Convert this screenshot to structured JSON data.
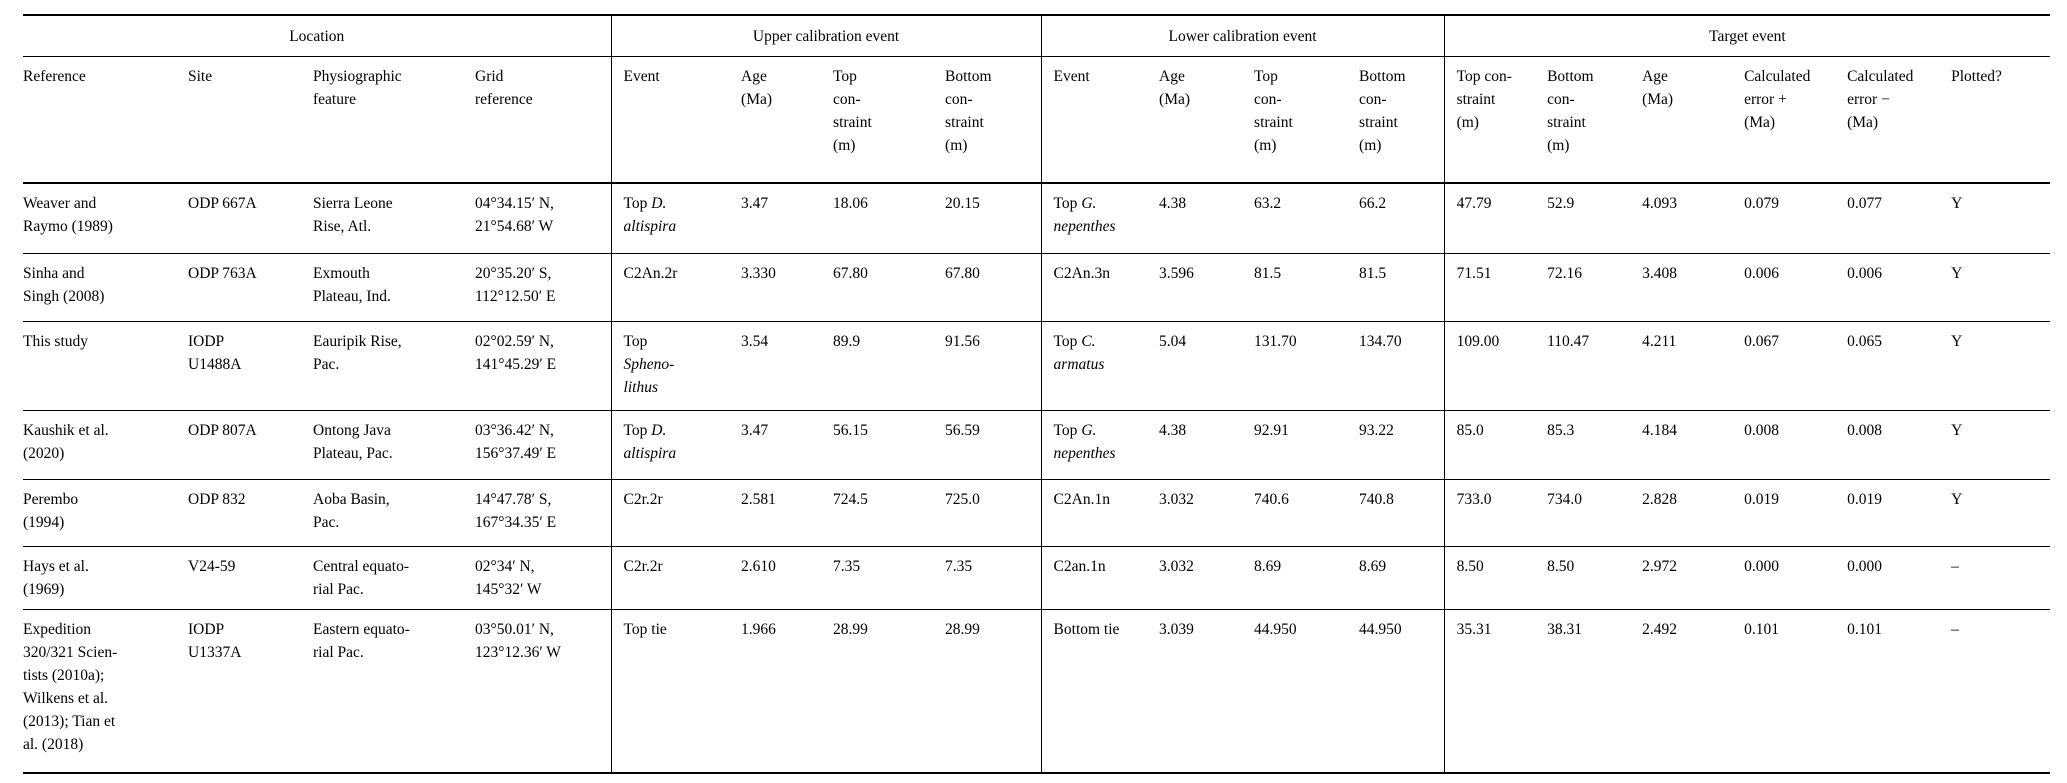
{
  "page": {
    "background": "#ffffff",
    "text_color": "#000000",
    "rule_color": "#000000"
  },
  "table": {
    "groups": [
      {
        "label": "Location",
        "span": 4
      },
      {
        "label": "Upper calibration event",
        "span": 4
      },
      {
        "label": "Lower calibration event",
        "span": 4
      },
      {
        "label": "Target event",
        "span": 6
      }
    ],
    "columns": [
      "Reference",
      "Site",
      "Physiographic\nfeature",
      "Grid\nreference",
      "Event",
      "Age\n(Ma)",
      "Top\ncon-\nstraint\n(m)",
      "Bottom\ncon-\nstraint\n(m)",
      "Event",
      "Age\n(Ma)",
      "Top\ncon-\nstraint\n(m)",
      "Bottom\ncon-\nstraint\n(m)",
      "Top con-\nstraint\n(m)",
      "Bottom\ncon-\nstraint\n(m)",
      "Age\n(Ma)",
      "Calculated\nerror +\n(Ma)",
      "Calculated\nerror −\n(Ma)",
      "Plotted?"
    ],
    "rows": [
      [
        "Weaver and\nRaymo (1989)",
        "ODP 667A",
        "Sierra Leone\nRise, Atl.",
        "04°34.15′ N,\n21°54.68′ W",
        "Top *D.\naltispira*",
        "3.47",
        "18.06",
        "20.15",
        "Top *G.\nnepenthes*",
        "4.38",
        "63.2",
        "66.2",
        "47.79",
        "52.9",
        "4.093",
        "0.079",
        "0.077",
        "Y"
      ],
      [
        "Sinha and\nSingh (2008)",
        "ODP 763A",
        "Exmouth\nPlateau, Ind.",
        "20°35.20′ S,\n112°12.50′ E",
        "C2An.2r",
        "3.330",
        "67.80",
        "67.80",
        "C2An.3n",
        "3.596",
        "81.5",
        "81.5",
        "71.51",
        "72.16",
        "3.408",
        "0.006",
        "0.006",
        "Y"
      ],
      [
        "This study",
        "IODP\nU1488A",
        "Eauripik Rise,\nPac.",
        "02°02.59′ N,\n141°45.29′ E",
        "Top\n*Spheno-\nlithus*",
        "3.54",
        "89.9",
        "91.56",
        "Top *C.\narmatus*",
        "5.04",
        "131.70",
        "134.70",
        "109.00",
        "110.47",
        "4.211",
        "0.067",
        "0.065",
        "Y"
      ],
      [
        "Kaushik et al.\n(2020)",
        "ODP 807A",
        "Ontong Java\nPlateau, Pac.",
        "03°36.42′ N,\n156°37.49′ E",
        "Top *D.\naltispira*",
        "3.47",
        "56.15",
        "56.59",
        "Top *G.\nnepenthes*",
        "4.38",
        "92.91",
        "93.22",
        "85.0",
        "85.3",
        "4.184",
        "0.008",
        "0.008",
        "Y"
      ],
      [
        "Perembo\n(1994)",
        "ODP 832",
        "Aoba Basin,\nPac.",
        "14°47.78′ S,\n167°34.35′ E",
        "C2r.2r",
        "2.581",
        "724.5",
        "725.0",
        "C2An.1n",
        "3.032",
        "740.6",
        "740.8",
        "733.0",
        "734.0",
        "2.828",
        "0.019",
        "0.019",
        "Y"
      ],
      [
        "Hays et al.\n(1969)",
        "V24-59",
        "Central equato-\nrial Pac.",
        "02°34′ N,\n145°32′ W",
        "C2r.2r",
        "2.610",
        "7.35",
        "7.35",
        "C2an.1n",
        "3.032",
        "8.69",
        "8.69",
        "8.50",
        "8.50",
        "2.972",
        "0.000",
        "0.000",
        "–"
      ],
      [
        "Expedition\n320/321 Scien-\ntists (2010a);\nWilkens et al.\n(2013); Tian et\nal. (2018)",
        "IODP\nU1337A",
        "Eastern equato-\nrial Pac.",
        "03°50.01′ N,\n123°12.36′ W",
        "Top tie",
        "1.966",
        "28.99",
        "28.99",
        "Bottom tie",
        "3.039",
        "44.950",
        "44.950",
        "35.31",
        "38.31",
        "2.492",
        "0.101",
        "0.101",
        "–"
      ]
    ]
  }
}
